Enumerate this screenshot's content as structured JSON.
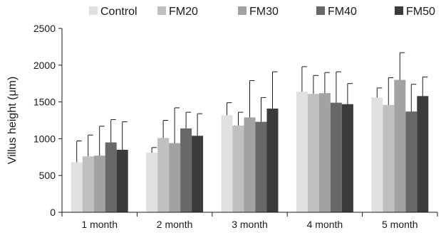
{
  "chart_data": {
    "type": "bar",
    "title": "",
    "xlabel": "",
    "ylabel": "Villus height (μm)",
    "ylim": [
      0,
      2500
    ],
    "yticks": [
      0,
      500,
      1000,
      1500,
      2000,
      2500
    ],
    "grid": false,
    "legend_position": "top",
    "categories": [
      "1 month",
      "2 month",
      "3 month",
      "4 month",
      "5 month"
    ],
    "series": [
      {
        "name": "Control",
        "color": "#e0e0e0",
        "values": [
          680,
          810,
          1320,
          1640,
          1560
        ],
        "errors": [
          290,
          70,
          170,
          340,
          130
        ]
      },
      {
        "name": "FM20",
        "color": "#c0c0c0",
        "values": [
          760,
          1010,
          1180,
          1610,
          1460
        ],
        "errors": [
          290,
          240,
          180,
          250,
          370
        ]
      },
      {
        "name": "FM30",
        "color": "#a2a2a2",
        "values": [
          770,
          940,
          1290,
          1620,
          1800
        ],
        "errors": [
          400,
          480,
          500,
          280,
          370
        ]
      },
      {
        "name": "FM40",
        "color": "#686868",
        "values": [
          950,
          1140,
          1230,
          1490,
          1370
        ],
        "errors": [
          310,
          220,
          330,
          420,
          370
        ]
      },
      {
        "name": "FM50",
        "color": "#3b3b3b",
        "values": [
          850,
          1040,
          1410,
          1470,
          1580
        ],
        "errors": [
          380,
          300,
          500,
          280,
          260
        ]
      }
    ]
  }
}
